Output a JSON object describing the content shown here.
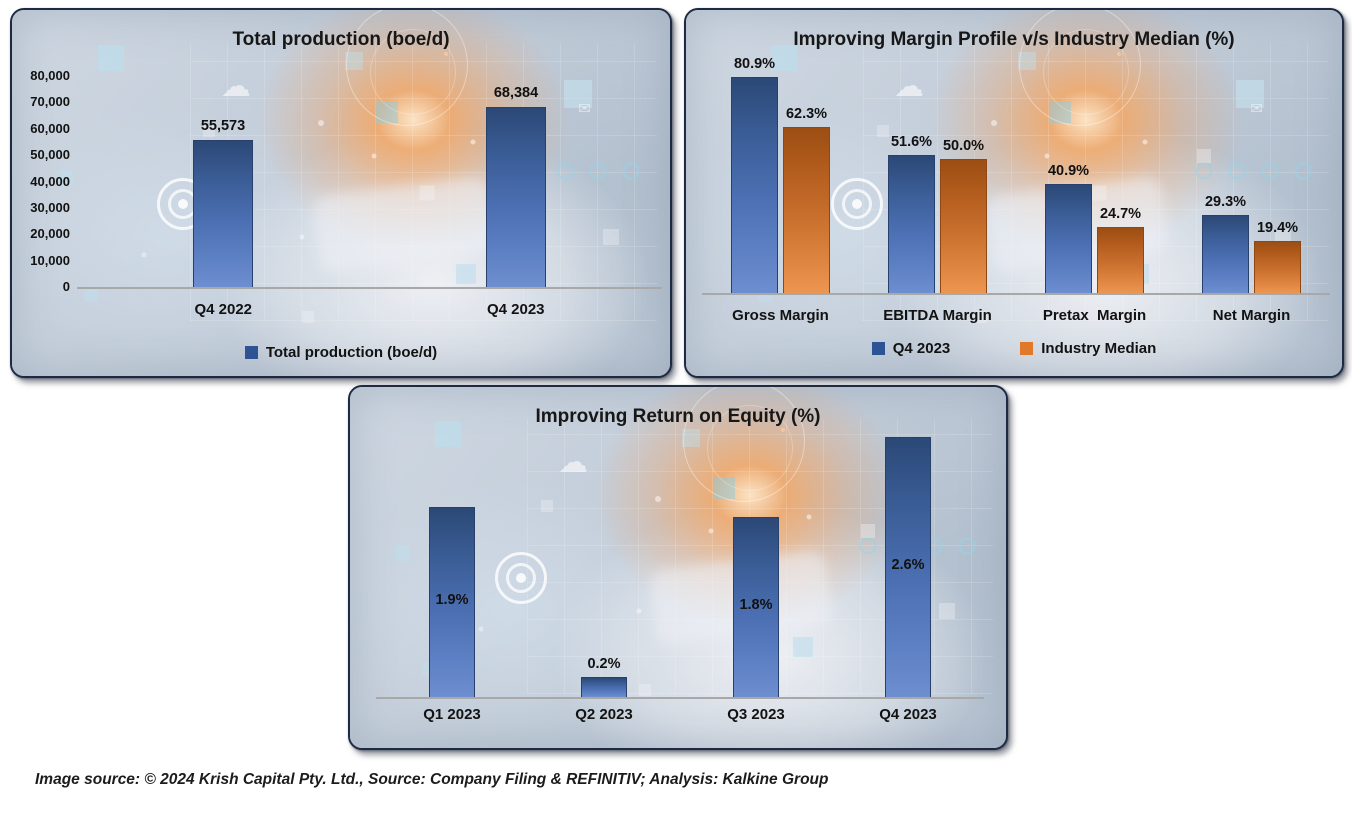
{
  "footer": {
    "text": "Image source: © 2024 Krish Capital Pty. Ltd., Source: Company Filing & REFINITIV; Analysis: Kalkine Group"
  },
  "colors": {
    "series_blue": "#2e5395",
    "series_orange": "#e0792a",
    "bar_blue_top": "#2b4876",
    "bar_blue_bottom": "#6d8ecf",
    "bar_orange_top": "#9c4e13",
    "bar_orange_bottom": "#ec9651",
    "panel_border": "#1d2a44",
    "axis_line": "#a8a8a8",
    "text": "#121212"
  },
  "chart_data": [
    {
      "type": "bar",
      "title": "Total production (boe/d)",
      "categories": [
        "Q4 2022",
        "Q4 2023"
      ],
      "series": [
        {
          "name": "Total production (boe/d)",
          "color": "blue",
          "values": [
            55573,
            68384
          ],
          "labels": [
            "55,573",
            "68,384"
          ]
        }
      ],
      "xlabel": "",
      "ylabel": "",
      "ylim": [
        0,
        80000
      ],
      "yticks": [
        80000,
        70000,
        60000,
        50000,
        40000,
        30000,
        20000,
        10000,
        0
      ],
      "ytick_labels": [
        "80,000",
        "70,000",
        "60,000",
        "50,000",
        "40,000",
        "30,000",
        "20,000",
        "10,000",
        "0"
      ],
      "grid": false,
      "legend_position": "bottom",
      "label_position": "above"
    },
    {
      "type": "bar",
      "title": "Improving Margin Profile v/s Industry Median (%)",
      "categories": [
        "Gross Margin",
        "EBITDA Margin",
        "Pretax  Margin",
        "Net Margin"
      ],
      "series": [
        {
          "name": "Q4 2023",
          "color": "blue",
          "values": [
            80.9,
            51.6,
            40.9,
            29.3
          ],
          "labels": [
            "80.9%",
            "51.6%",
            "40.9%",
            "29.3%"
          ]
        },
        {
          "name": "Industry Median",
          "color": "orange",
          "values": [
            62.3,
            50.0,
            24.7,
            19.4
          ],
          "labels": [
            "62.3%",
            "50.0%",
            "24.7%",
            "19.4%"
          ]
        }
      ],
      "xlabel": "",
      "ylabel": "",
      "ylim": [
        0,
        85
      ],
      "grid": false,
      "legend_position": "bottom",
      "label_position": "above"
    },
    {
      "type": "bar",
      "title": "Improving Return on Equity (%)",
      "categories": [
        "Q1 2023",
        "Q2 2023",
        "Q3 2023",
        "Q4 2023"
      ],
      "series": [
        {
          "name": "Return on Equity",
          "color": "blue",
          "values": [
            1.9,
            0.2,
            1.8,
            2.6
          ],
          "labels": [
            "1.9%",
            "0.2%",
            "1.8%",
            "2.6%"
          ]
        }
      ],
      "xlabel": "",
      "ylabel": "",
      "ylim": [
        0,
        2.7
      ],
      "grid": false,
      "legend_position": "none",
      "label_position": "inside"
    }
  ]
}
